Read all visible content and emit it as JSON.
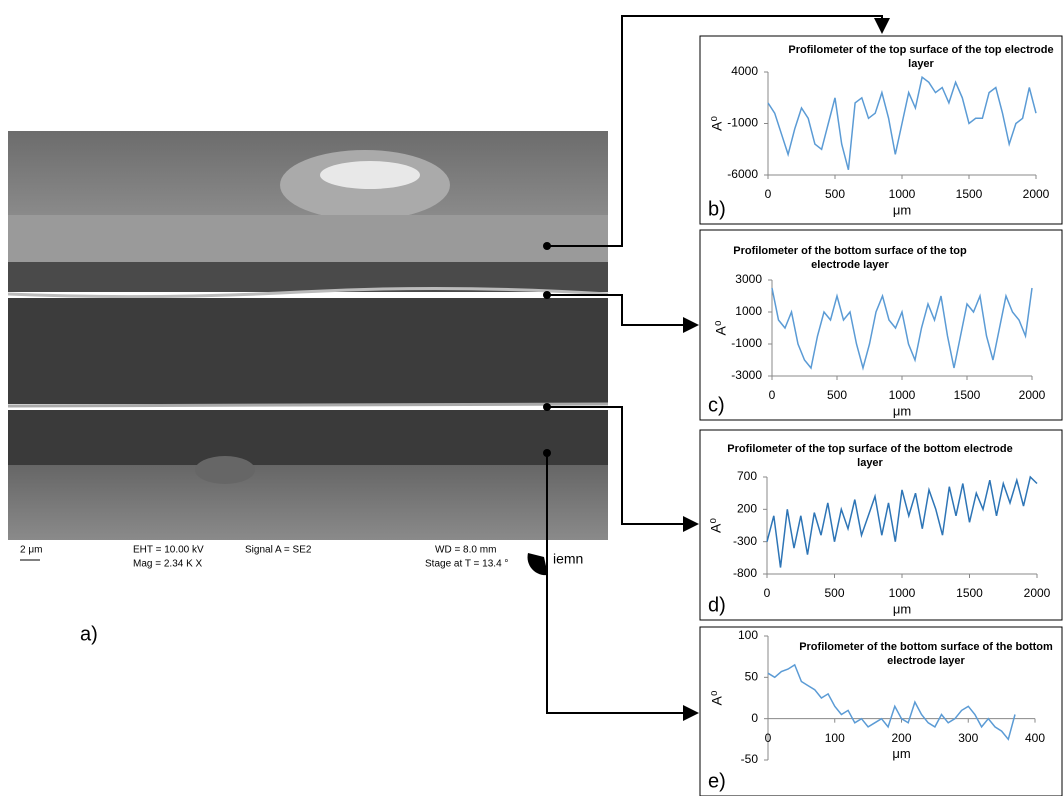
{
  "figure_label": "a)",
  "sem": {
    "scale": "2 μm",
    "eht": "EHT = 10.00 kV",
    "mag": "Mag =  2.34 K X",
    "signal": "Signal A = SE2",
    "wd": "WD =  8.0 mm",
    "stage": "Stage at T =  13.4 °",
    "logo": "iemn"
  },
  "chart_data": [
    {
      "type": "line",
      "panel_label": "b)",
      "title": "Profilometer of the top surface of the top electrode layer",
      "y_label": "A⁰",
      "x_label": "μm",
      "color": "#5b9bd5",
      "x": [
        0,
        50,
        100,
        150,
        200,
        250,
        300,
        350,
        400,
        450,
        500,
        550,
        600,
        650,
        700,
        750,
        800,
        850,
        900,
        950,
        1000,
        1050,
        1100,
        1150,
        1200,
        1250,
        1300,
        1350,
        1400,
        1450,
        1500,
        1550,
        1600,
        1650,
        1700,
        1750,
        1800,
        1850,
        1900,
        1950,
        2000
      ],
      "values": [
        1000,
        0,
        -2000,
        -4000,
        -1500,
        500,
        -500,
        -3000,
        -3500,
        -1000,
        1500,
        -3000,
        -5500,
        1000,
        1500,
        -500,
        0,
        2000,
        -500,
        -4000,
        -1000,
        2000,
        500,
        3500,
        3000,
        2000,
        2500,
        1000,
        3000,
        1500,
        -1000,
        -500,
        -500,
        2000,
        2500,
        0,
        -3000,
        -1000,
        -500,
        2500,
        0
      ],
      "xlim": [
        0,
        2000
      ],
      "xticks": [
        0,
        500,
        1000,
        1500,
        2000
      ],
      "ylim": [
        -6000,
        4000
      ],
      "yticks": [
        4000,
        -1000,
        -6000
      ]
    },
    {
      "type": "line",
      "panel_label": "c)",
      "title": "Profilometer of the bottom surface of the top electrode layer",
      "y_label": "A⁰",
      "x_label": "μm",
      "color": "#5b9bd5",
      "x": [
        0,
        50,
        100,
        150,
        200,
        250,
        300,
        350,
        400,
        450,
        500,
        550,
        600,
        650,
        700,
        750,
        800,
        850,
        900,
        950,
        1000,
        1050,
        1100,
        1150,
        1200,
        1250,
        1300,
        1350,
        1400,
        1450,
        1500,
        1550,
        1600,
        1650,
        1700,
        1750,
        1800,
        1850,
        1900,
        1950,
        2000
      ],
      "values": [
        2500,
        500,
        0,
        1000,
        -1000,
        -2000,
        -2500,
        -500,
        1000,
        500,
        2000,
        500,
        1000,
        -1000,
        -2500,
        -1000,
        1000,
        2000,
        500,
        0,
        1000,
        -1000,
        -2000,
        0,
        1500,
        500,
        2000,
        -500,
        -2500,
        -500,
        1500,
        1000,
        2000,
        -500,
        -2000,
        0,
        2000,
        1000,
        500,
        -500,
        2500
      ],
      "xlim": [
        0,
        2000
      ],
      "xticks": [
        0,
        500,
        1000,
        1500,
        2000
      ],
      "ylim": [
        -3000,
        3000
      ],
      "yticks": [
        3000,
        1000,
        -1000,
        -3000
      ]
    },
    {
      "type": "line",
      "panel_label": "d)",
      "title": "Profilometer of the top surface of the bottom electrode layer",
      "y_label": "A⁰",
      "x_label": "μm",
      "color": "#2e75b6",
      "x": [
        0,
        50,
        100,
        150,
        200,
        250,
        300,
        350,
        400,
        450,
        500,
        550,
        600,
        650,
        700,
        750,
        800,
        850,
        900,
        950,
        1000,
        1050,
        1100,
        1150,
        1200,
        1250,
        1300,
        1350,
        1400,
        1450,
        1500,
        1550,
        1600,
        1650,
        1700,
        1750,
        1800,
        1850,
        1900,
        1950,
        2000
      ],
      "values": [
        -300,
        100,
        -700,
        200,
        -400,
        100,
        -500,
        150,
        -200,
        300,
        -300,
        200,
        -100,
        350,
        -200,
        100,
        400,
        -200,
        300,
        -300,
        500,
        100,
        450,
        -100,
        500,
        200,
        -200,
        550,
        100,
        600,
        0,
        450,
        200,
        650,
        100,
        600,
        300,
        650,
        250,
        700,
        600
      ],
      "xlim": [
        0,
        2000
      ],
      "xticks": [
        0,
        500,
        1000,
        1500,
        2000
      ],
      "ylim": [
        -800,
        700
      ],
      "yticks": [
        700,
        200,
        -300,
        -800
      ]
    },
    {
      "type": "line",
      "panel_label": "e)",
      "title": "Profilometer of the bottom surface of the bottom electrode layer",
      "y_label": "A⁰",
      "x_label": "μm",
      "color": "#5b9bd5",
      "x": [
        0,
        10,
        20,
        30,
        40,
        50,
        60,
        70,
        80,
        90,
        100,
        110,
        120,
        130,
        140,
        150,
        160,
        170,
        180,
        190,
        200,
        210,
        220,
        230,
        240,
        250,
        260,
        270,
        280,
        290,
        300,
        310,
        320,
        330,
        340,
        350,
        360,
        370
      ],
      "values": [
        55,
        50,
        57,
        60,
        65,
        45,
        40,
        35,
        25,
        30,
        15,
        5,
        10,
        -5,
        0,
        -10,
        -5,
        0,
        -10,
        15,
        0,
        -5,
        20,
        5,
        -5,
        -10,
        5,
        -5,
        0,
        10,
        15,
        5,
        -10,
        0,
        -10,
        -15,
        -25,
        5
      ],
      "xlim": [
        0,
        400
      ],
      "xticks": [
        0,
        100,
        200,
        300,
        400
      ],
      "ylim": [
        -50,
        100
      ],
      "yticks": [
        100,
        50,
        0,
        -50
      ],
      "xaxis_crosses": 0
    }
  ]
}
